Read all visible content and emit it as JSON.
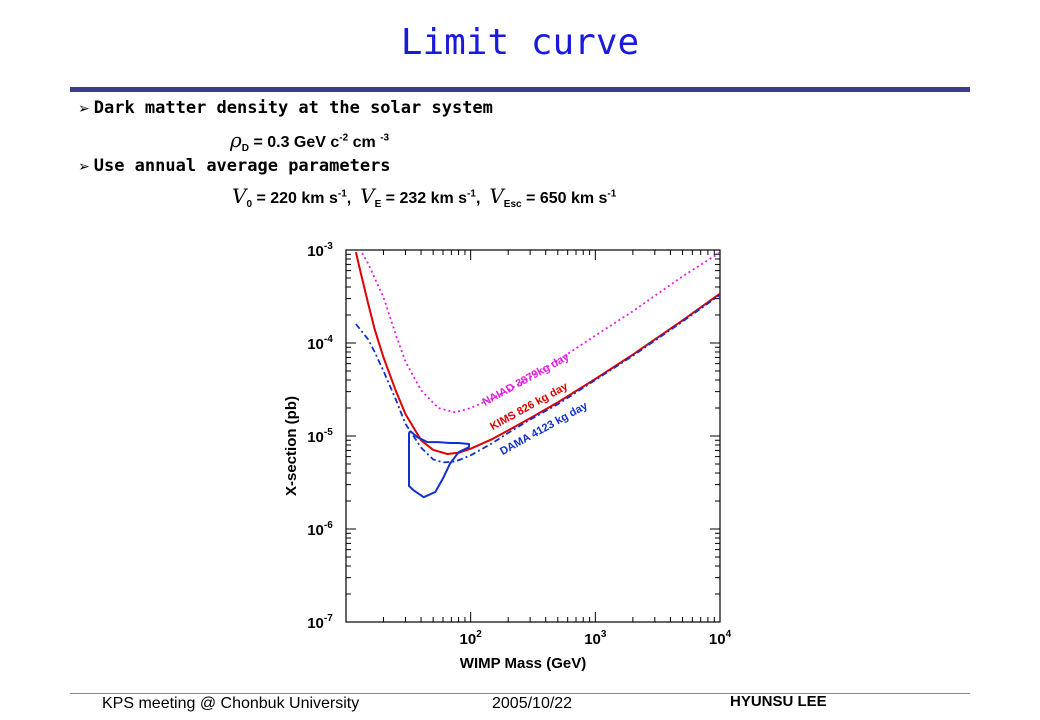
{
  "slide": {
    "title": "Limit curve",
    "bullets": [
      {
        "text": "Dark matter density at the solar system"
      },
      {
        "text": "Use annual average parameters"
      }
    ],
    "formula1": {
      "symbol": "ρ",
      "sub": "D",
      "text": " = 0.3 GeV c",
      "sup1": "-2",
      "text2": " cm ",
      "sup2": "-3"
    },
    "formula2": {
      "v0": {
        "symbol": "V",
        "sub": "0",
        "text": " = 220 km s",
        "sup": "-1",
        "sep": ","
      },
      "vE": {
        "symbol": "V",
        "sub": "E",
        "text": " = 232 km s",
        "sup": "-1",
        "sep": ","
      },
      "vEsc": {
        "symbol": "V",
        "sub": "Esc",
        "text": " = 650 km s",
        "sup": "-1",
        "sep": ""
      }
    }
  },
  "footer": {
    "left": "KPS meeting @ Chonbuk University",
    "date": "2005/10/22",
    "right": "HYUNSU LEE"
  },
  "chart_data": {
    "type": "line",
    "xscale": "log",
    "yscale": "log",
    "xlim": [
      10,
      10000
    ],
    "ylim": [
      1e-07,
      0.001
    ],
    "xlabel": "WIMP Mass (GeV)",
    "ylabel": "X-section (pb)",
    "x_ticks": [
      {
        "base": "10",
        "exp": "2"
      },
      {
        "base": "10",
        "exp": "3"
      },
      {
        "base": "10",
        "exp": "4"
      }
    ],
    "y_ticks": [
      {
        "base": "10",
        "exp": "-3"
      },
      {
        "base": "10",
        "exp": "-4"
      },
      {
        "base": "10",
        "exp": "-5"
      },
      {
        "base": "10",
        "exp": "-6"
      },
      {
        "base": "10",
        "exp": "-7"
      }
    ],
    "grid": false,
    "series": [
      {
        "name": "NAIAD 3879kg day",
        "color": "#e020e0",
        "style": "dotted",
        "x": [
          13.5,
          15,
          17,
          20,
          25,
          30,
          40,
          55,
          75,
          100,
          150,
          200,
          300,
          500,
          1000,
          2000,
          5000,
          10000
        ],
        "y": [
          0.00093,
          0.00072,
          0.0005,
          0.00031,
          0.000125,
          6.3e-05,
          3.1e-05,
          2e-05,
          1.8e-05,
          2e-05,
          2.55e-05,
          3.1e-05,
          4.3e-05,
          6.5e-05,
          0.00012,
          0.00022,
          0.00052,
          0.00094
        ]
      },
      {
        "name": "KIMS 826 kg day",
        "color": "#e00000",
        "style": "solid",
        "x": [
          12,
          13,
          15,
          17,
          20,
          25,
          30,
          40,
          50,
          65,
          80,
          100,
          150,
          200,
          300,
          500,
          1000,
          2000,
          5000,
          10000
        ],
        "y": [
          0.00095,
          0.0006,
          0.00027,
          0.00014,
          7e-05,
          3.1e-05,
          1.72e-05,
          9e-06,
          7.1e-06,
          6.4e-06,
          6.6e-06,
          7.3e-06,
          9.3e-06,
          1.15e-05,
          1.55e-05,
          2.3e-05,
          4.1e-05,
          7.5e-05,
          0.000175,
          0.00034
        ]
      },
      {
        "name": "DAMA 4123 kg day",
        "color": "#1030d0",
        "style": "dashdot",
        "x": [
          12,
          13,
          15,
          17,
          20,
          25,
          30,
          40,
          50,
          60,
          75,
          100,
          150,
          200,
          300,
          500,
          1000,
          2000,
          5000,
          10000
        ],
        "y": [
          0.00016,
          0.00014,
          0.00011,
          8e-05,
          5e-05,
          2.5e-05,
          1.35e-05,
          7.5e-06,
          5.6e-06,
          5.2e-06,
          5.3e-06,
          6.2e-06,
          8.4e-06,
          1.08e-05,
          1.5e-05,
          2.2e-05,
          4e-05,
          7.3e-05,
          0.00017,
          0.00033
        ]
      },
      {
        "name": "DAMA allowed region",
        "color": "#1030d0",
        "style": "solid",
        "x": [
          32,
          33,
          37,
          45,
          55,
          68,
          80,
          97,
          97,
          80,
          68,
          60,
          52,
          42,
          35,
          32,
          32
        ],
        "y": [
          1.1e-05,
          1.12e-05,
          9.8e-06,
          8.6e-06,
          8.6e-06,
          8.4e-06,
          8.4e-06,
          8.2e-06,
          7.6e-06,
          6.7e-06,
          5e-06,
          3.5e-06,
          2.5e-06,
          2.2e-06,
          2.6e-06,
          2.9e-06,
          1.1e-05
        ]
      }
    ],
    "annotations": [
      {
        "text": "NAIAD 3879kg day",
        "color": "#e020e0",
        "x": 130,
        "y": 2.1e-05
      },
      {
        "text": "KIMS 826 kg day",
        "color": "#e00000",
        "x": 150,
        "y": 1.15e-05
      },
      {
        "text": "DAMA 4123 kg day",
        "color": "#1030d0",
        "x": 180,
        "y": 6.2e-06
      }
    ]
  }
}
